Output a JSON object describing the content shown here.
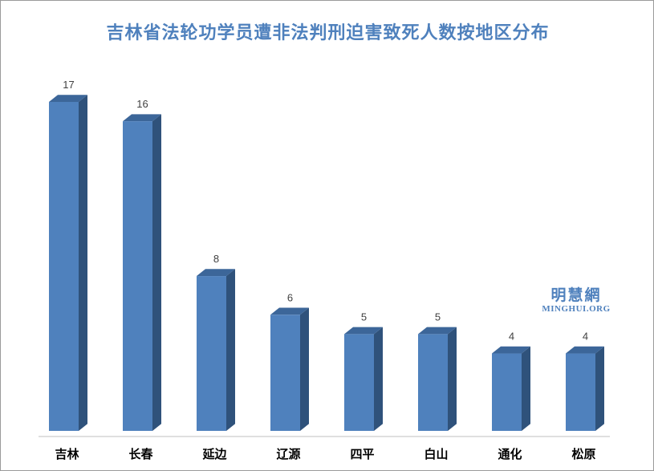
{
  "chart_data": {
    "type": "bar",
    "title": "吉林省法轮功学员遭非法判刑迫害致死人数按地区分布",
    "categories": [
      "吉林",
      "长春",
      "延边",
      "辽源",
      "四平",
      "白山",
      "通化",
      "松原"
    ],
    "values": [
      17,
      16,
      8,
      6,
      5,
      5,
      4,
      4
    ],
    "ylim": [
      0,
      17
    ],
    "xlabel": "",
    "ylabel": "",
    "grid": false,
    "legend": "none",
    "style": "3d-column",
    "colors": {
      "bar_front": "#4f81bd",
      "bar_side": "#2f527b",
      "bar_top": "#3c6699",
      "title": "#4f81bd",
      "axis": "#bfbfbf"
    }
  },
  "watermark": {
    "chinese": "明慧網",
    "english": "MINGHUI.ORG"
  }
}
